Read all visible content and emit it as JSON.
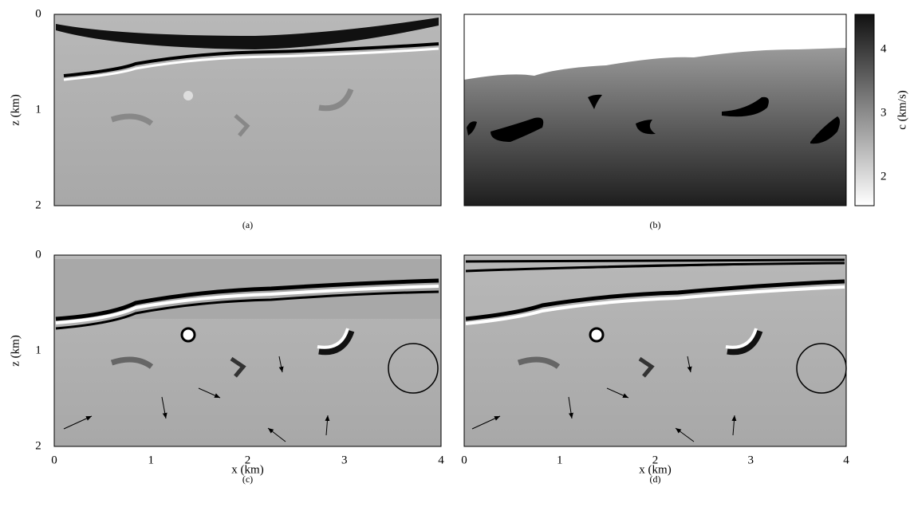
{
  "panels": [
    {
      "caption": "(a)",
      "y_label": "z (km)",
      "y_ticks": [
        "0",
        "1",
        "2"
      ]
    },
    {
      "caption": "(b)",
      "colorbar_label": "c (km/s)",
      "colorbar_ticks": [
        "2",
        "3",
        "4"
      ]
    },
    {
      "caption": "(c)",
      "y_label": "z (km)",
      "y_ticks": [
        "0",
        "1",
        "2"
      ],
      "x_label": "x (km)",
      "x_ticks": [
        "0",
        "1",
        "2",
        "3",
        "4"
      ]
    },
    {
      "caption": "(d)",
      "x_label": "x (km)",
      "x_ticks": [
        "0",
        "1",
        "2",
        "3",
        "4"
      ]
    }
  ]
}
